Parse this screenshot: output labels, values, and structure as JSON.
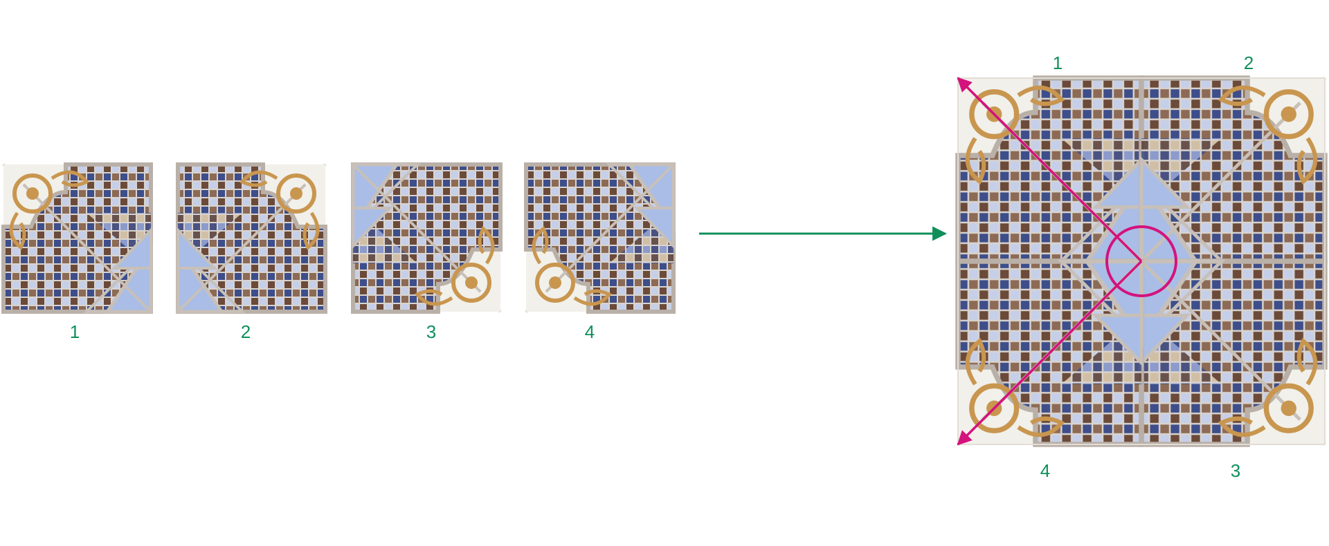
{
  "colors": {
    "label": "#0f8f5a",
    "arrow": "#0f8f5a",
    "axis": "#d4127d",
    "mosaic_a": "#6b4a3a",
    "mosaic_b": "#3d4e8a",
    "mosaic_c": "#b8c6e8",
    "pane": "#a9bde6",
    "ornament": "#c9964f",
    "ground": "#f1f0ea"
  },
  "left_tiles": [
    {
      "label": "1",
      "icon": "tile-quarter-1-icon"
    },
    {
      "label": "2",
      "icon": "tile-quarter-2-icon"
    },
    {
      "label": "3",
      "icon": "tile-quarter-3-icon"
    },
    {
      "label": "4",
      "icon": "tile-quarter-4-icon"
    }
  ],
  "assembled": {
    "icon": "assembled-pattern-icon",
    "corner_labels": {
      "top_left": "1",
      "top_right": "2",
      "bottom_right": "3",
      "bottom_left": "4"
    }
  },
  "connector_icon": "right-arrow-icon",
  "rotation_marker_icon": "rotation-arc-icon"
}
